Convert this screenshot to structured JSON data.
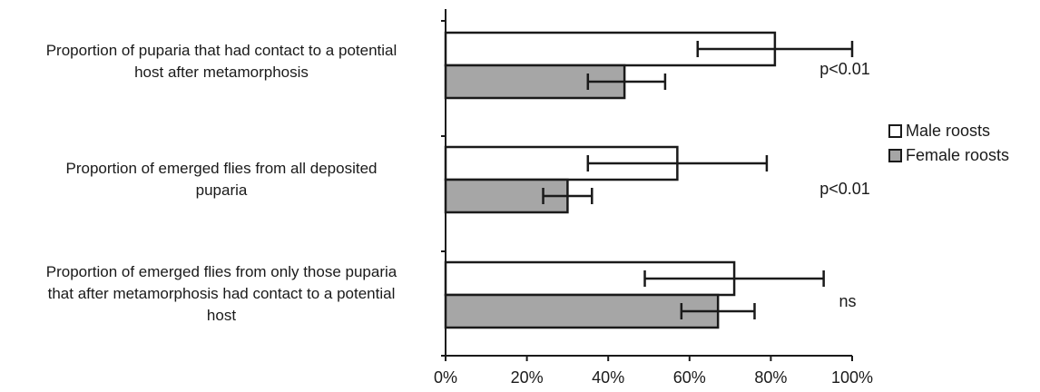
{
  "chart_data": {
    "type": "bar",
    "orientation": "horizontal",
    "categories": [
      "Proportion of puparia that had contact to a potential\nhost after metamorphosis",
      "Proportion of emerged flies from all deposited\npuparia",
      "Proportion of emerged flies from only those puparia\nthat after metamorphosis had contact to a potential\nhost"
    ],
    "series": [
      {
        "name": "Male roosts",
        "color": "#ffffff",
        "values": [
          81,
          57,
          71
        ],
        "error_low": [
          62,
          35,
          49
        ],
        "error_high": [
          100,
          79,
          93
        ]
      },
      {
        "name": "Female roosts",
        "color": "#a6a6a6",
        "values": [
          44,
          30,
          67
        ],
        "error_low": [
          35,
          24,
          58
        ],
        "error_high": [
          54,
          36,
          76
        ]
      }
    ],
    "annotations": [
      "p<0.01",
      "p<0.01",
      "ns"
    ],
    "x_ticks": [
      "0%",
      "20%",
      "40%",
      "60%",
      "80%",
      "100%"
    ],
    "xlim": [
      0,
      100
    ],
    "grid": false,
    "legend_position": "right"
  }
}
